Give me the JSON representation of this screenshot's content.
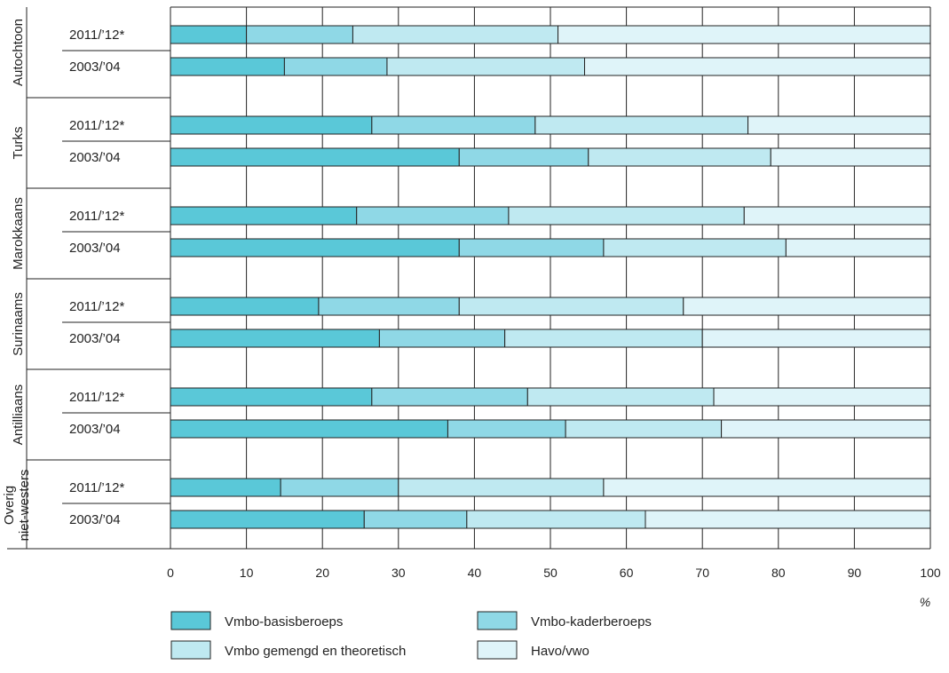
{
  "chart_data": {
    "type": "bar",
    "orientation": "horizontal",
    "stacked": true,
    "xlabel": "%",
    "xlim": [
      0,
      100
    ],
    "x_ticks": [
      0,
      10,
      20,
      30,
      40,
      50,
      60,
      70,
      80,
      90,
      100
    ],
    "grid": true,
    "legend_position": "bottom",
    "series": [
      {
        "name": "Vmbo-basisberoeps",
        "color": "#5ac8d8"
      },
      {
        "name": "Vmbo-kaderberoeps",
        "color": "#8fd8e6"
      },
      {
        "name": "Vmbo gemengd en theoretisch",
        "color": "#bfe9f1"
      },
      {
        "name": "Havo/vwo",
        "color": "#dff4f9"
      }
    ],
    "groups": [
      {
        "name": "Autochtoon",
        "rows": [
          {
            "period": "2011/’12*",
            "values": [
              10,
              14,
              27,
              49
            ]
          },
          {
            "period": "2003/’04",
            "values": [
              15,
              13.5,
              26,
              45.5
            ]
          }
        ]
      },
      {
        "name": "Turks",
        "rows": [
          {
            "period": "2011/’12*",
            "values": [
              26.5,
              21.5,
              28,
              24
            ]
          },
          {
            "period": "2003/’04",
            "values": [
              38,
              17,
              24,
              21
            ]
          }
        ]
      },
      {
        "name": "Marokkaans",
        "rows": [
          {
            "period": "2011/’12*",
            "values": [
              24.5,
              20,
              31,
              24.5
            ]
          },
          {
            "period": "2003/’04",
            "values": [
              38,
              19,
              24,
              19
            ]
          }
        ]
      },
      {
        "name": "Surinaams",
        "rows": [
          {
            "period": "2011/’12*",
            "values": [
              19.5,
              18.5,
              29.5,
              32.5
            ]
          },
          {
            "period": "2003/’04",
            "values": [
              27.5,
              16.5,
              26,
              30
            ]
          }
        ]
      },
      {
        "name": "Antilliaans",
        "rows": [
          {
            "period": "2011/’12*",
            "values": [
              26.5,
              20.5,
              24.5,
              28.5
            ]
          },
          {
            "period": "2003/’04",
            "values": [
              36.5,
              15.5,
              20.5,
              27.5
            ]
          }
        ]
      },
      {
        "name": "Overig\nniet-westers",
        "rows": [
          {
            "period": "2011/’12*",
            "values": [
              14.5,
              15.5,
              27,
              43
            ]
          },
          {
            "period": "2003/’04",
            "values": [
              25.5,
              13.5,
              23.5,
              37.5
            ]
          }
        ]
      }
    ]
  }
}
